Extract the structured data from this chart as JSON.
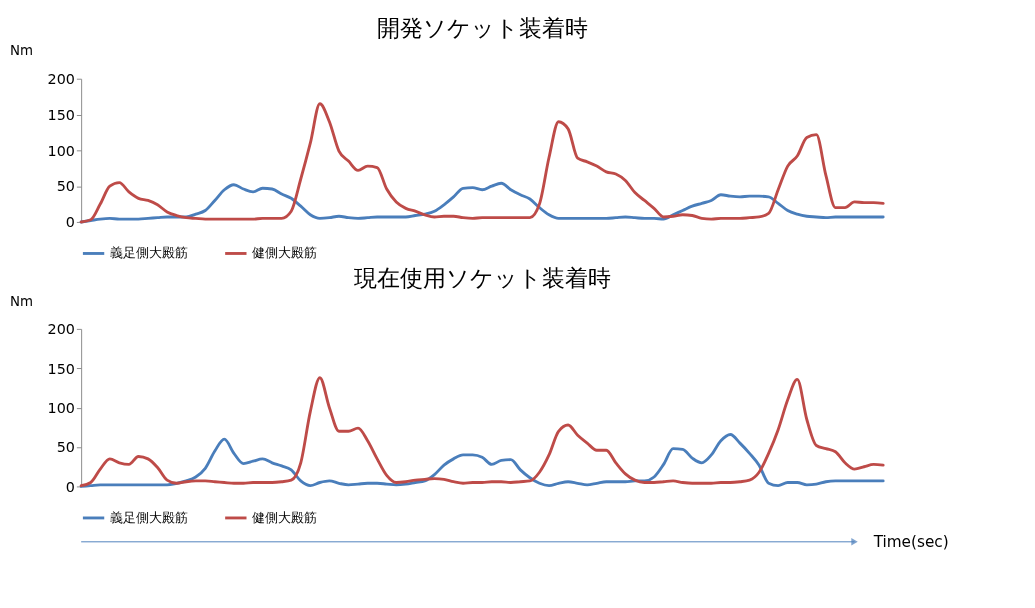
{
  "chart_data": [
    {
      "type": "line",
      "title": "開発ソケット装着時",
      "ylabel": "Nm",
      "categories": [
        null,
        null,
        null,
        null,
        null,
        null,
        null,
        null,
        null,
        null,
        null,
        null,
        null,
        null,
        null,
        null,
        null,
        null,
        null,
        null,
        null,
        null,
        null,
        null,
        null,
        null,
        null,
        null,
        null,
        null,
        null,
        null,
        null,
        null,
        null,
        null,
        null,
        null,
        null,
        null,
        null,
        null,
        null,
        null,
        null,
        null,
        null,
        null,
        null,
        null,
        null,
        null,
        null,
        null,
        null,
        null,
        null,
        null,
        null,
        null,
        null,
        null,
        null,
        null,
        null,
        null,
        null,
        null,
        null,
        null,
        null,
        null,
        null,
        null,
        null,
        null,
        null,
        null,
        null,
        null,
        null,
        null,
        null,
        null,
        null
      ],
      "ylim": [
        0,
        200
      ],
      "yticks": [
        0,
        50,
        100,
        150,
        200
      ],
      "grid": false,
      "legend": "bottom",
      "tick_labels": "y",
      "marker": "none",
      "line_style": "solid",
      "series": [
        {
          "name": "義足側大殿筋",
          "color": "#4a7ebb",
          "values": [
            0,
            2,
            4,
            5,
            4,
            4,
            4,
            5,
            6,
            7,
            7,
            7,
            11,
            16,
            30,
            45,
            52,
            46,
            42,
            47,
            46,
            39,
            33,
            22,
            10,
            5,
            6,
            8,
            6,
            5,
            6,
            7,
            7,
            7,
            7,
            9,
            11,
            15,
            24,
            35,
            47,
            48,
            45,
            50,
            54,
            45,
            38,
            32,
            20,
            10,
            5,
            5,
            5,
            5,
            5,
            5,
            6,
            7,
            6,
            5,
            5,
            4,
            10,
            16,
            22,
            26,
            30,
            38,
            36,
            35,
            36,
            36,
            35,
            26,
            16,
            11,
            8,
            7,
            6,
            7,
            7,
            7,
            7,
            7,
            7
          ]
        },
        {
          "name": "健側大殿筋",
          "color": "#be4b48",
          "values": [
            0,
            3,
            25,
            50,
            55,
            42,
            33,
            30,
            24,
            14,
            9,
            6,
            5,
            4,
            4,
            4,
            4,
            4,
            4,
            5,
            5,
            5,
            15,
            60,
            110,
            165,
            140,
            99,
            85,
            72,
            78,
            76,
            46,
            28,
            19,
            15,
            10,
            7,
            8,
            8,
            6,
            5,
            6,
            6,
            6,
            6,
            6,
            6,
            25,
            90,
            140,
            130,
            89,
            84,
            78,
            70,
            67,
            58,
            41,
            30,
            19,
            7,
            8,
            10,
            9,
            5,
            4,
            5,
            5,
            5,
            6,
            7,
            12,
            45,
            78,
            92,
            118,
            122,
            65,
            20,
            20,
            28,
            27,
            27,
            26
          ]
        }
      ]
    },
    {
      "type": "line",
      "title": "現在使用ソケット装着時",
      "ylabel": "Nm",
      "xlabel": "Time(sec)",
      "categories": [
        null,
        null,
        null,
        null,
        null,
        null,
        null,
        null,
        null,
        null,
        null,
        null,
        null,
        null,
        null,
        null,
        null,
        null,
        null,
        null,
        null,
        null,
        null,
        null,
        null,
        null,
        null,
        null,
        null,
        null,
        null,
        null,
        null,
        null,
        null,
        null,
        null,
        null,
        null,
        null,
        null,
        null,
        null,
        null,
        null,
        null,
        null,
        null,
        null,
        null,
        null,
        null,
        null,
        null,
        null,
        null,
        null,
        null,
        null,
        null,
        null,
        null,
        null,
        null,
        null,
        null,
        null,
        null,
        null,
        null,
        null,
        null,
        null,
        null,
        null,
        null,
        null,
        null,
        null,
        null,
        null,
        null,
        null,
        null,
        null
      ],
      "ylim": [
        0,
        200
      ],
      "yticks": [
        0,
        50,
        100,
        150,
        200
      ],
      "grid": false,
      "legend": "bottom",
      "tick_labels": "y",
      "marker": "none",
      "line_style": "solid",
      "series": [
        {
          "name": "義足側大殿筋",
          "color": "#4a7ebb",
          "values": [
            0,
            1,
            2,
            2,
            2,
            2,
            2,
            2,
            2,
            2,
            4,
            7,
            12,
            23,
            45,
            60,
            42,
            29,
            32,
            35,
            30,
            26,
            21,
            7,
            1,
            5,
            7,
            4,
            2,
            3,
            4,
            4,
            3,
            2,
            3,
            5,
            7,
            15,
            27,
            35,
            40,
            40,
            37,
            28,
            33,
            34,
            21,
            11,
            4,
            1,
            4,
            6,
            4,
            2,
            4,
            6,
            6,
            6,
            7,
            7,
            12,
            28,
            48,
            47,
            36,
            30,
            40,
            58,
            66,
            55,
            42,
            27,
            4,
            1,
            5,
            5,
            2,
            3,
            6,
            7,
            7,
            7,
            7,
            7,
            7
          ]
        },
        {
          "name": "健側大殿筋",
          "color": "#be4b48",
          "values": [
            1,
            5,
            22,
            35,
            30,
            28,
            38,
            35,
            24,
            8,
            4,
            6,
            7,
            7,
            6,
            5,
            4,
            4,
            5,
            5,
            5,
            6,
            8,
            30,
            95,
            138,
            100,
            70,
            70,
            74,
            58,
            35,
            14,
            5,
            6,
            8,
            9,
            10,
            9,
            6,
            4,
            5,
            5,
            6,
            6,
            5,
            6,
            7,
            18,
            40,
            70,
            78,
            65,
            55,
            46,
            46,
            30,
            16,
            8,
            5,
            5,
            6,
            7,
            5,
            4,
            4,
            4,
            5,
            5,
            6,
            8,
            18,
            42,
            72,
            110,
            136,
            85,
            52,
            48,
            44,
            30,
            22,
            25,
            28,
            27
          ]
        }
      ]
    }
  ]
}
